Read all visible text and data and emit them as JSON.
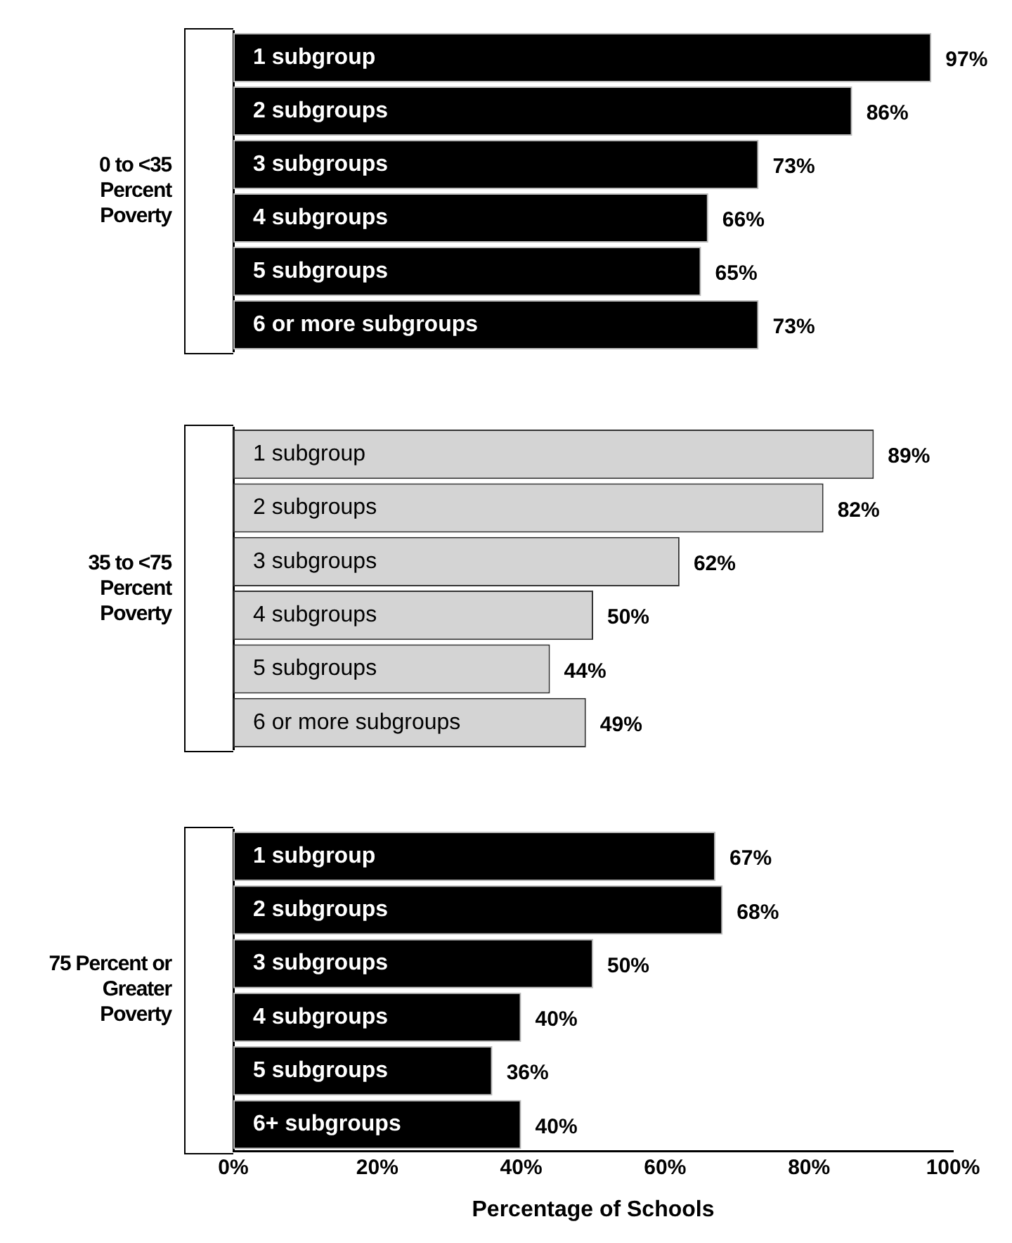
{
  "chart_data": [
    {
      "type": "bar",
      "orientation": "horizontal",
      "ylabel": "0 to <35 Percent Poverty",
      "categories": [
        "1 subgroup",
        "2 subgroups",
        "3 subgroups",
        "4 subgroups",
        "5 subgroups",
        "6 or more subgroups"
      ],
      "values": [
        97,
        86,
        73,
        66,
        65,
        73
      ],
      "value_labels": [
        "97%",
        "86%",
        "73%",
        "66%",
        "65%",
        "73%"
      ],
      "color": "#000000",
      "xlim": [
        0,
        100
      ],
      "tick_labels": false,
      "grid": false,
      "legend": false
    },
    {
      "type": "bar",
      "orientation": "horizontal",
      "ylabel": "35 to <75 Percent Poverty",
      "categories": [
        "1 subgroup",
        "2 subgroups",
        "3 subgroups",
        "4 subgroups",
        "5 subgroups",
        "6 or more subgroups"
      ],
      "values": [
        89,
        82,
        62,
        50,
        44,
        49
      ],
      "value_labels": [
        "89%",
        "82%",
        "62%",
        "50%",
        "44%",
        "49%"
      ],
      "color": "#d4d4d4",
      "xlim": [
        0,
        100
      ],
      "tick_labels": false,
      "grid": false,
      "legend": false
    },
    {
      "type": "bar",
      "orientation": "horizontal",
      "ylabel": "75 Percent or Greater Poverty",
      "xlabel": "Percentage of Schools",
      "categories": [
        "1 subgroup",
        "2 subgroups",
        "3 subgroups",
        "4 subgroups",
        "5 subgroups",
        "6+ subgroups"
      ],
      "values": [
        67,
        68,
        50,
        40,
        36,
        40
      ],
      "value_labels": [
        "67%",
        "68%",
        "50%",
        "40%",
        "36%",
        "40%"
      ],
      "color": "#000000",
      "xlim": [
        0,
        100
      ],
      "xticks": [
        {
          "value": 0,
          "label": "0%"
        },
        {
          "value": 20,
          "label": "20%"
        },
        {
          "value": 40,
          "label": "40%"
        },
        {
          "value": 60,
          "label": "60%"
        },
        {
          "value": 80,
          "label": "80%"
        },
        {
          "value": 100,
          "label": "100%"
        }
      ],
      "tick_labels": "x",
      "grid": false,
      "legend": false
    }
  ]
}
